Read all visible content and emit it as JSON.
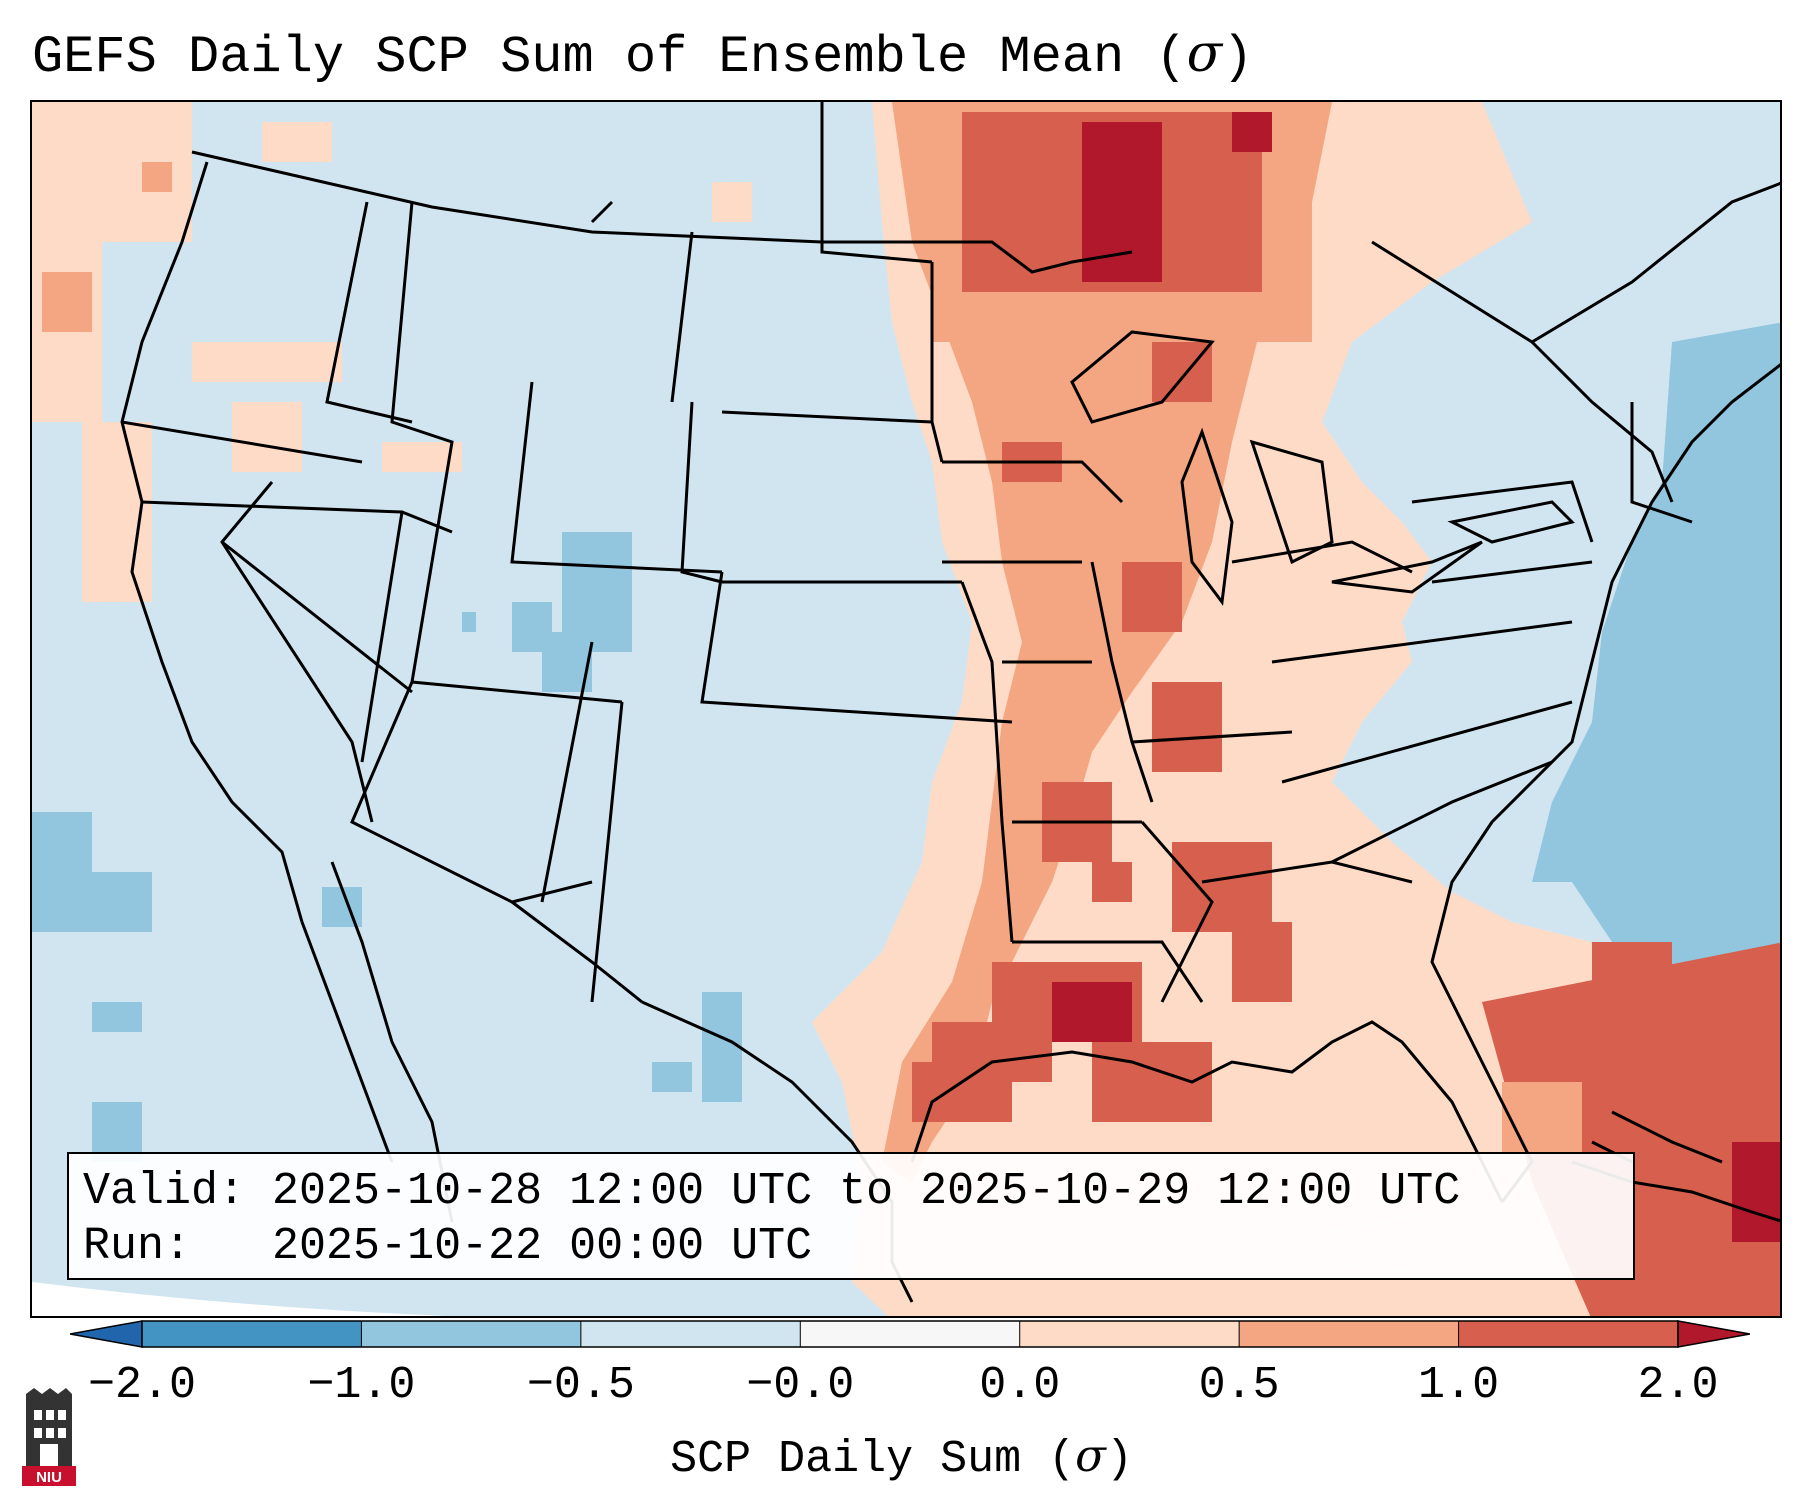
{
  "title": {
    "prefix": "GEFS Daily SCP Sum of Ensemble Mean (",
    "symbol": "σ",
    "suffix": ")"
  },
  "info": {
    "valid_label": "Valid:",
    "valid_value": "2025-10-28 12:00 UTC to 2025-10-29 12:00 UTC",
    "run_label": "Run:",
    "run_value": "2025-10-22 00:00 UTC"
  },
  "colorbar": {
    "ticks": [
      "−2.0",
      "−1.0",
      "−0.5",
      "−0.0",
      "0.0",
      "0.5",
      "1.0",
      "2.0"
    ],
    "label_prefix": "SCP Daily Sum (",
    "label_symbol": "σ",
    "label_suffix": ")",
    "bin_colors": [
      "#2166ac",
      "#4393c3",
      "#92c5de",
      "#d1e5f0",
      "#f7f7f7",
      "#fddbc7",
      "#f4a582",
      "#d6604d",
      "#b2182b"
    ],
    "extend": "both"
  },
  "logo": {
    "text": "NIU",
    "color": "#c8102e"
  },
  "map": {
    "region": "Contiguous United States",
    "ocean_color": "#d1e5f0",
    "boundary_color": "#000000"
  }
}
